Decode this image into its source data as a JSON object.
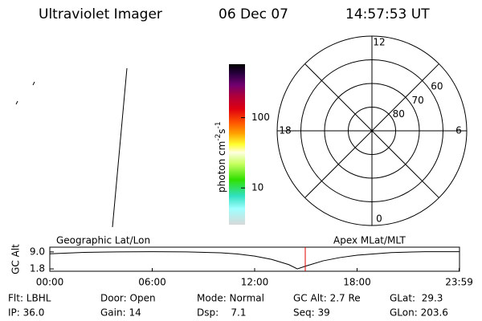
{
  "header": {
    "title": "Ultraviolet Imager",
    "date": "06 Dec 07",
    "time": "14:57:53 UT"
  },
  "colorbar": {
    "label": "photon cm",
    "exp1": "-2",
    "unit2": "s",
    "exp2": "-1",
    "zlim": [
      3,
      576
    ],
    "ticks": [
      10,
      100
    ],
    "log": true
  },
  "polar": {
    "latlim": [
      50,
      90
    ],
    "lat_rings": [
      60,
      70,
      80
    ],
    "mlt_labels": [
      {
        "value": 12,
        "label": "12"
      },
      {
        "value": 18,
        "label": "18"
      },
      {
        "value": 6,
        "label": "6"
      },
      {
        "value": 0,
        "label": "0"
      }
    ]
  },
  "left_label": "Geographic Lat/Lon",
  "right_label": "Apex MLat/MLT",
  "orbit": {
    "ylabel": "GC Alt",
    "xlim": [
      0,
      24
    ],
    "ylim": [
      0.8,
      11.0
    ],
    "xticks": [
      {
        "value": 0,
        "label": "00:00"
      },
      {
        "value": 6,
        "label": "06:00"
      },
      {
        "value": 12,
        "label": "12:00"
      },
      {
        "value": 18,
        "label": "18:00"
      },
      {
        "value": 23.98,
        "label": "23:59"
      }
    ],
    "yticks": [
      {
        "value": 9.0,
        "label": "9.0"
      },
      {
        "value": 1.8,
        "label": "1.8"
      }
    ],
    "x": [
      0,
      2,
      4,
      6,
      8,
      10,
      11,
      12,
      13,
      14,
      14.5,
      15,
      16,
      17,
      18,
      20,
      22,
      23.98
    ],
    "values": [
      8.2,
      8.8,
      9.0,
      9.1,
      9.0,
      8.6,
      8.1,
      7.2,
      5.8,
      3.6,
      1.8,
      3.0,
      5.2,
      6.6,
      7.6,
      8.7,
      9.1,
      9.1
    ],
    "marker": 14.965,
    "marker_color": "#e00000"
  },
  "footer": {
    "rows": [
      [
        "Flt: LBHL",
        "Door: Open",
        "Mode: Normal",
        "GC Alt: 2.7 Re",
        "GLat:  29.3"
      ],
      [
        "IP: 36.0",
        "Gain: 14",
        "Dsp:    7.1",
        "Seq: 39",
        "GLon: 203.6"
      ]
    ]
  }
}
